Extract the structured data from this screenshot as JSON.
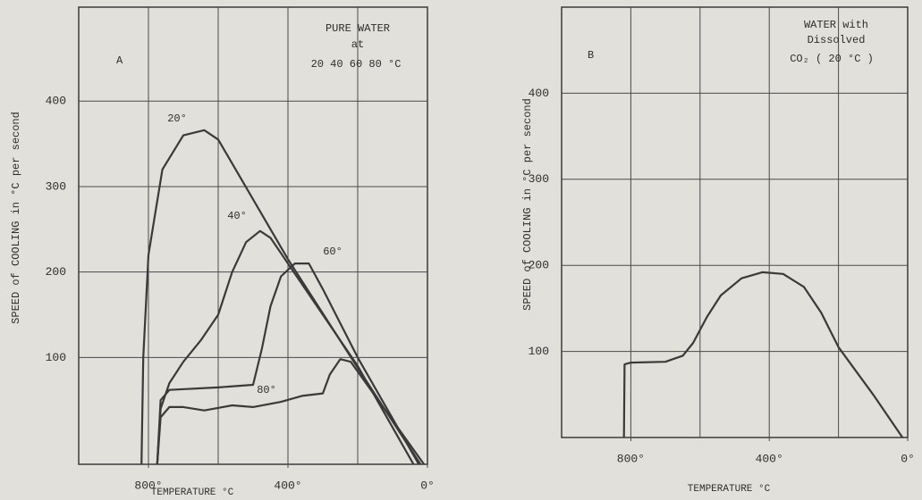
{
  "chart_data": [
    {
      "type": "line",
      "annotations": [
        "A",
        "PURE WATER",
        "at",
        "20 40 60 80 °C"
      ],
      "ylabel": "SPEED of COOLING in °C per second",
      "xlabel": "TEMPERATURE °C",
      "xlim": [
        1000,
        0
      ],
      "ylim": [
        -25,
        510
      ],
      "xticks": [
        {
          "value": 800,
          "label": "800°"
        },
        {
          "value": 400,
          "label": "400°"
        },
        {
          "value": 0,
          "label": "0°"
        }
      ],
      "yticks": [
        100,
        200,
        300,
        400
      ],
      "xgrid": [
        800,
        600,
        400,
        200
      ],
      "grid": true,
      "series": [
        {
          "name": "20°",
          "color": "#3a3a3a",
          "x": [
            820,
            815,
            800,
            760,
            700,
            640,
            600,
            400,
            200,
            20
          ],
          "values": [
            -25,
            100,
            220,
            320,
            360,
            366,
            355,
            215,
            88,
            -25
          ]
        },
        {
          "name": "40°",
          "color": "#3a3a3a",
          "x": [
            775,
            765,
            740,
            700,
            650,
            600,
            560,
            520,
            480,
            450,
            400,
            200,
            40
          ],
          "values": [
            -25,
            40,
            70,
            95,
            120,
            150,
            200,
            235,
            248,
            240,
            210,
            90,
            -25
          ]
        },
        {
          "name": "60°",
          "color": "#3a3a3a",
          "x": [
            775,
            765,
            740,
            600,
            500,
            475,
            450,
            420,
            380,
            340,
            300,
            200,
            25
          ],
          "values": [
            -25,
            50,
            62,
            65,
            68,
            110,
            160,
            195,
            210,
            210,
            180,
            100,
            -25
          ]
        },
        {
          "name": "80°",
          "color": "#3a3a3a",
          "x": [
            775,
            765,
            740,
            700,
            640,
            560,
            500,
            420,
            360,
            300,
            280,
            250,
            220,
            10
          ],
          "values": [
            -25,
            30,
            42,
            42,
            38,
            44,
            42,
            48,
            55,
            58,
            80,
            98,
            95,
            -25
          ]
        }
      ]
    },
    {
      "type": "line",
      "annotations": [
        "B",
        "WATER with",
        "Dissolved",
        "CO₂ ( 20 °C )"
      ],
      "ylabel": "SPEED of COOLING in °C per second",
      "xlabel": "TEMPERATURE °C",
      "xlim": [
        1000,
        0
      ],
      "ylim": [
        0,
        500
      ],
      "xticks": [
        {
          "value": 800,
          "label": "800°"
        },
        {
          "value": 400,
          "label": "400°"
        },
        {
          "value": 0,
          "label": "0°"
        }
      ],
      "yticks": [
        100,
        200,
        300,
        400
      ],
      "xgrid": [
        800,
        600,
        400,
        200
      ],
      "grid": true,
      "series": [
        {
          "color": "#3a3a3a",
          "x": [
            820,
            818,
            800,
            700,
            650,
            620,
            580,
            540,
            480,
            420,
            360,
            300,
            250,
            200,
            100,
            15
          ],
          "values": [
            0,
            85,
            87,
            88,
            95,
            110,
            140,
            165,
            185,
            192,
            190,
            175,
            145,
            105,
            50,
            0
          ]
        }
      ]
    }
  ]
}
